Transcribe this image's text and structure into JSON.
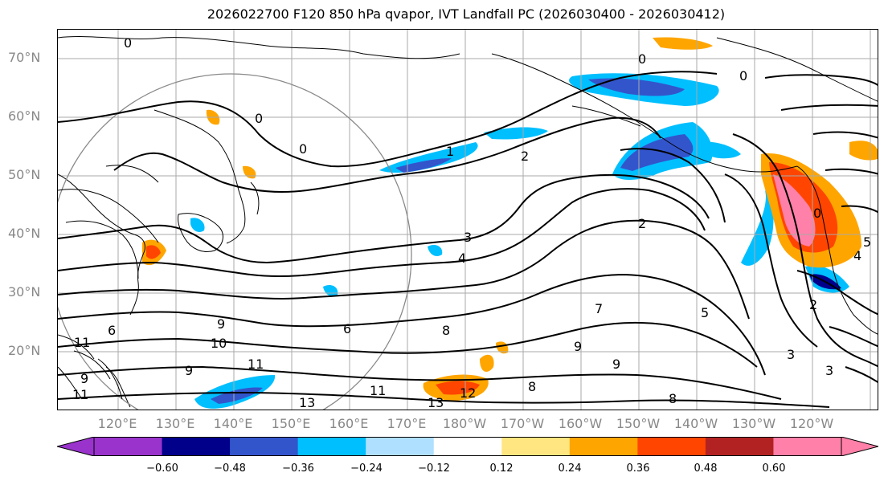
{
  "title": "2026022700 F120 850 hPa qvapor, IVT Landfall PC (2026030400 - 2026030412)",
  "lat_labels": [
    "70°N",
    "60°N",
    "50°N",
    "40°N",
    "30°N",
    "20°N"
  ],
  "lon_labels": [
    "120°E",
    "130°E",
    "140°E",
    "150°E",
    "160°E",
    "170°E",
    "180°W",
    "170°W",
    "160°W",
    "150°W",
    "140°W",
    "130°W",
    "120°W"
  ],
  "colorbar": {
    "ticks": [
      "−0.60",
      "−0.48",
      "−0.36",
      "−0.24",
      "−0.12",
      "0.12",
      "0.24",
      "0.36",
      "0.48",
      "0.60"
    ],
    "colors": [
      "#9933cc",
      "#00008b",
      "#3355cc",
      "#00bfff",
      "#b0e0ff",
      "#ffffff",
      "#ffe680",
      "#ffa500",
      "#ff4500",
      "#b22222",
      "#ff80a8",
      "#ff80a8"
    ]
  },
  "contour_labels": [
    "0",
    "0",
    "0",
    "0",
    "0",
    "0",
    "1",
    "2",
    "2",
    "3",
    "4",
    "5",
    "6",
    "7",
    "8",
    "9",
    "9",
    "10",
    "11",
    "11",
    "13",
    "13",
    "12",
    "11",
    "8",
    "8",
    "9",
    "9",
    "3",
    "3",
    "2",
    "4",
    "5",
    "11",
    "9",
    "6"
  ]
}
